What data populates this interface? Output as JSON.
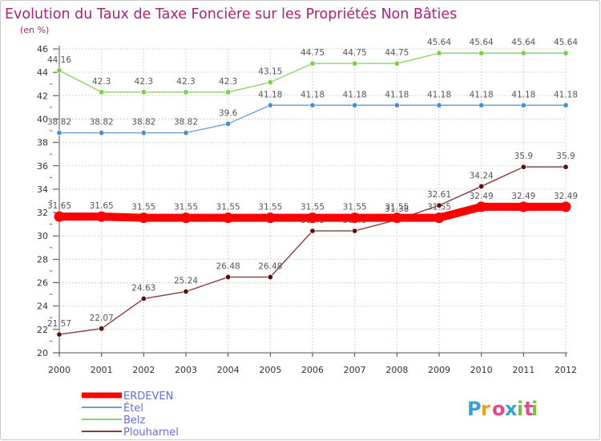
{
  "chart_data": {
    "type": "line",
    "title": "Evolution du Taux de Taxe Foncière sur les Propriétés Non Bâties",
    "subtitle": "(en %)",
    "xlabel": "",
    "ylabel": "(en %)",
    "ylim": [
      20,
      46
    ],
    "yticks": [
      20,
      22,
      24,
      26,
      28,
      30,
      32,
      34,
      36,
      38,
      40,
      42,
      44,
      46
    ],
    "categories": [
      "2000",
      "2001",
      "2002",
      "2003",
      "2004",
      "2005",
      "2006",
      "2007",
      "2008",
      "2009",
      "2010",
      "2011",
      "2012"
    ],
    "grid": true,
    "legend": "bottom-left",
    "series": [
      {
        "name": "ERDEVEN",
        "color": "#ff0000",
        "marker": "#ff0000",
        "emphasis": true,
        "values": [
          31.65,
          31.65,
          31.55,
          31.55,
          31.55,
          31.55,
          31.55,
          31.55,
          31.55,
          31.55,
          32.49,
          32.49,
          32.49
        ],
        "labels": [
          "31.65",
          "31.65",
          "31.55",
          "31.55",
          "31.55",
          "31.55",
          "31.55",
          "31.55",
          "31.55",
          "31.55",
          "32.49",
          "32.49",
          "32.49"
        ]
      },
      {
        "name": "Étel",
        "color": "#6f9fcf",
        "marker": "#4a8fd0",
        "emphasis": false,
        "values": [
          38.82,
          38.82,
          38.82,
          38.82,
          39.6,
          41.18,
          41.18,
          41.18,
          41.18,
          41.18,
          41.18,
          41.18,
          41.18
        ],
        "labels": [
          "38.82",
          "38.82",
          "38.82",
          "38.82",
          "39.6",
          "41.18",
          "41.18",
          "41.18",
          "41.18",
          "41.18",
          "41.18",
          "41.18",
          "41.18"
        ]
      },
      {
        "name": "Belz",
        "color": "#8fd46a",
        "marker": "#7ccf45",
        "emphasis": false,
        "values": [
          44.16,
          42.3,
          42.3,
          42.3,
          42.3,
          43.15,
          44.75,
          44.75,
          44.75,
          45.64,
          45.64,
          45.64,
          45.64
        ],
        "labels": [
          "44.16",
          "42.3",
          "42.3",
          "42.3",
          "42.3",
          "43.15",
          "44.75",
          "44.75",
          "44.75",
          "45.64",
          "45.64",
          "45.64",
          "45.64"
        ]
      },
      {
        "name": "Plouharnel",
        "color": "#8a3b3b",
        "marker": "#5a1010",
        "emphasis": false,
        "values": [
          21.57,
          22.07,
          24.63,
          25.24,
          26.48,
          26.48,
          30.43,
          30.43,
          31.38,
          32.61,
          34.24,
          35.9,
          35.9
        ],
        "labels": [
          "21.57",
          "22.07",
          "24.63",
          "25.24",
          "26.48",
          "26.48",
          "30.43",
          "30.43",
          "31.38",
          "32.61",
          "34.24",
          "35.9",
          "35.9"
        ]
      }
    ]
  },
  "branding": {
    "logo": "Proxiti",
    "letter_colors": [
      "#3aa0d8",
      "#e8a020",
      "#e04a8a",
      "#3aa0d8",
      "#7cc242",
      "#e04a8a",
      "#7cc242"
    ]
  }
}
